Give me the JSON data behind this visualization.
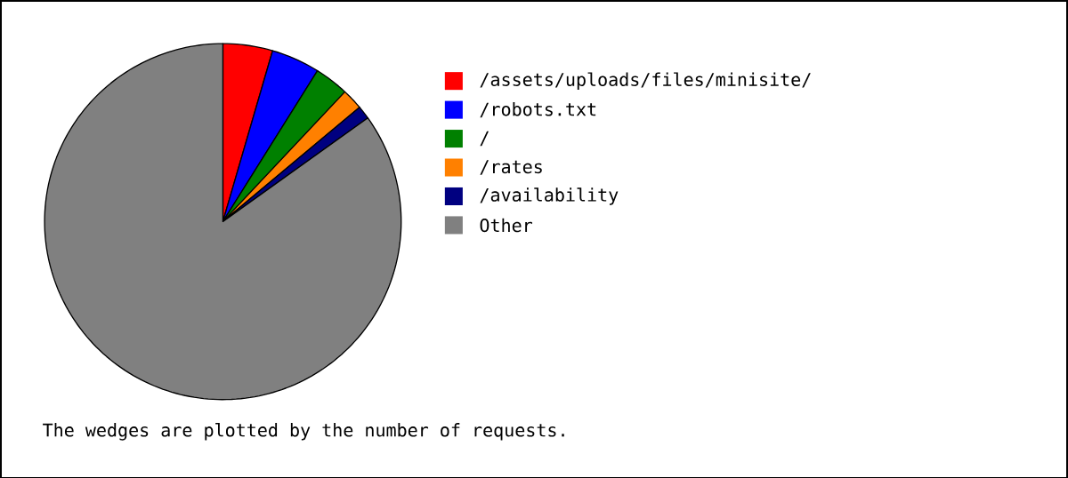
{
  "chart_data": {
    "type": "pie",
    "categories": [
      "/assets/uploads/files/minisite/",
      "/robots.txt",
      "/",
      "/rates",
      "/availability",
      "Other"
    ],
    "values": [
      4.5,
      4.4,
      3.1,
      1.9,
      1.2,
      84.9
    ],
    "colors": [
      "#ff0000",
      "#0000ff",
      "#008000",
      "#ff8000",
      "#000080",
      "#808080"
    ],
    "legend": "right",
    "annotations": [
      "The wedges are plotted by the number of requests."
    ]
  }
}
